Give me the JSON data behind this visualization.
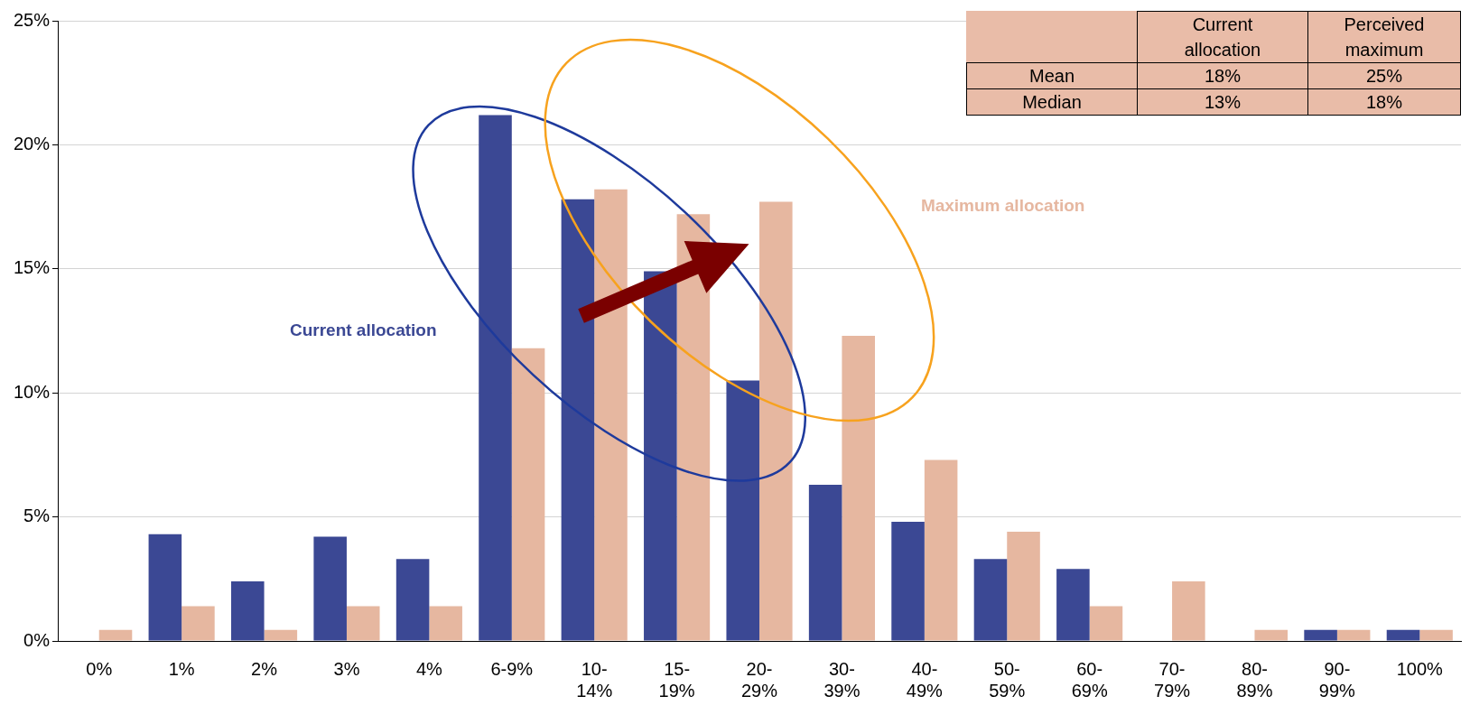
{
  "chart_data": {
    "type": "bar",
    "categories": [
      "0%",
      "1%",
      "2%",
      "3%",
      "4%",
      "6-9%",
      "10-14%",
      "15-19%",
      "20-29%",
      "30-39%",
      "40-49%",
      "50-59%",
      "60-69%",
      "70-79%",
      "80-89%",
      "90-99%",
      "100%"
    ],
    "series": [
      {
        "name": "Current allocation",
        "color": "#3b4894",
        "values": [
          0,
          4.3,
          2.4,
          4.2,
          3.3,
          21.2,
          17.8,
          14.9,
          10.5,
          6.3,
          4.8,
          3.3,
          2.9,
          0,
          0,
          0.45,
          0.45
        ]
      },
      {
        "name": "Maximum allocation",
        "color": "#e6b7a0",
        "values": [
          0.45,
          1.4,
          0.45,
          1.4,
          1.4,
          11.8,
          18.2,
          17.2,
          17.7,
          12.3,
          7.3,
          4.4,
          1.4,
          2.4,
          0.45,
          0.45,
          0.45
        ]
      }
    ],
    "ylim": [
      0,
      25
    ],
    "yticks": [
      {
        "value": 0,
        "label": "0%"
      },
      {
        "value": 5,
        "label": "5%"
      },
      {
        "value": 10,
        "label": "10%"
      },
      {
        "value": 15,
        "label": "15%"
      },
      {
        "value": 20,
        "label": "20%"
      },
      {
        "value": 25,
        "label": "25%"
      }
    ],
    "grid": "y",
    "annotations": [
      "Current allocation",
      "Perceived maximum",
      "Mean",
      "18%",
      "25%",
      "Median",
      "13%",
      "18%"
    ]
  }
}
